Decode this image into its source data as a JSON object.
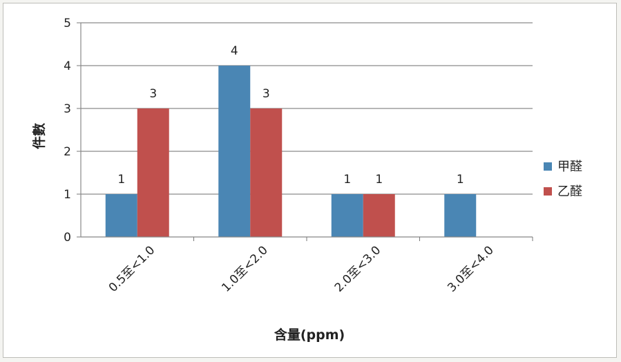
{
  "chart_data": {
    "type": "bar",
    "title": "",
    "xlabel": "含量(ppm)",
    "ylabel": "件數",
    "ylim": [
      0,
      5
    ],
    "yticks": [
      0,
      1,
      2,
      3,
      4,
      5
    ],
    "grid": true,
    "legend_position": "right",
    "categories": [
      "0.5至<1.0",
      "1.0至<2.0",
      "2.0至<3.0",
      "3.0至<4.0"
    ],
    "series": [
      {
        "name": "甲醛",
        "color": "#4a86b4",
        "values": [
          1,
          4,
          1,
          1
        ],
        "labels": [
          "1",
          "4",
          "1",
          "1"
        ]
      },
      {
        "name": "乙醛",
        "color": "#c0504d",
        "values": [
          3,
          3,
          1,
          0
        ],
        "labels": [
          "3",
          "3",
          "1",
          ""
        ]
      }
    ]
  }
}
